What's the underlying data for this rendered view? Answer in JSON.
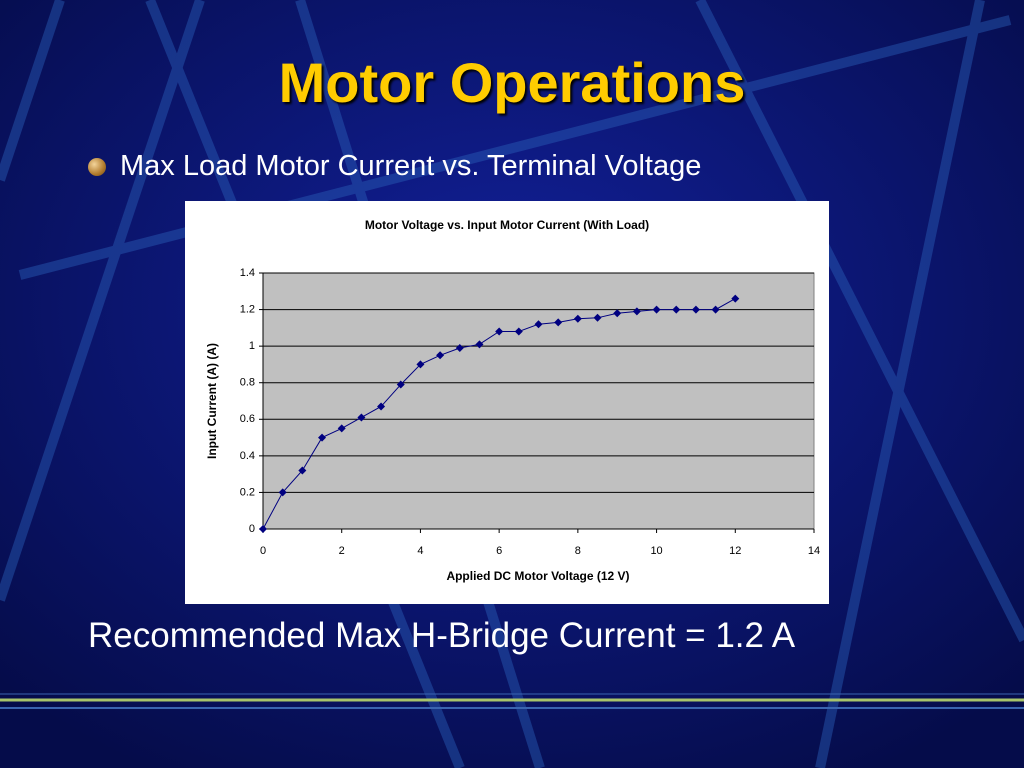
{
  "slide": {
    "title": "Motor Operations",
    "bullet": "Max Load Motor Current vs. Terminal Voltage",
    "note": "Recommended Max H-Bridge Current = 1.2 A"
  },
  "chart_data": {
    "type": "line",
    "title": "Motor Voltage vs. Input Motor Current (With Load)",
    "x_label": "Applied DC Motor Voltage (12 V)",
    "y_label": "Input Current (A) (A)",
    "x": [
      0,
      0.5,
      1,
      1.5,
      2,
      2.5,
      3,
      3.5,
      4,
      4.5,
      5,
      5.5,
      6,
      6.5,
      7,
      7.5,
      8,
      8.5,
      9,
      9.5,
      10,
      10.5,
      11,
      11.5,
      12
    ],
    "series": [
      {
        "color": "#000080",
        "values": [
          0,
          0.2,
          0.32,
          0.5,
          0.55,
          0.61,
          0.67,
          0.79,
          0.9,
          0.95,
          0.99,
          1.01,
          1.08,
          1.08,
          1.12,
          1.13,
          1.15,
          1.155,
          1.18,
          1.19,
          1.2,
          1.2,
          1.2,
          1.2,
          1.26
        ]
      }
    ],
    "xlim": [
      0,
      14
    ],
    "xticks": [
      0,
      2,
      4,
      6,
      8,
      10,
      12,
      14
    ],
    "ylim": [
      0,
      1.4
    ],
    "yticks": [
      0,
      0.2,
      0.4,
      0.6,
      0.8,
      1,
      1.2,
      1.4
    ],
    "grid": true
  }
}
